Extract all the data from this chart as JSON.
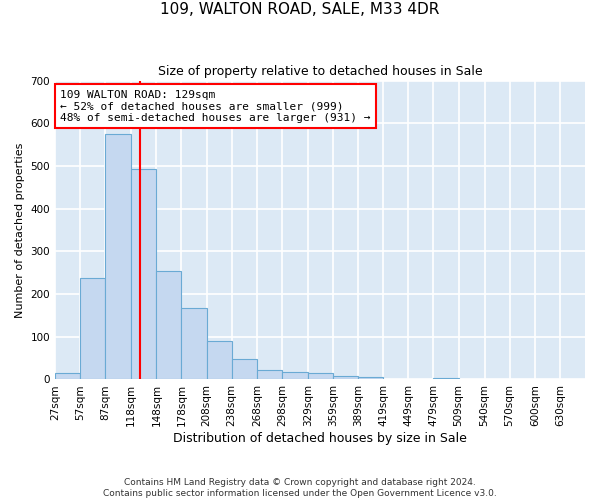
{
  "title1": "109, WALTON ROAD, SALE, M33 4DR",
  "title2": "Size of property relative to detached houses in Sale",
  "xlabel": "Distribution of detached houses by size in Sale",
  "ylabel": "Number of detached properties",
  "footnote": "Contains HM Land Registry data © Crown copyright and database right 2024.\nContains public sector information licensed under the Open Government Licence v3.0.",
  "annotation_text": "109 WALTON ROAD: 129sqm\n← 52% of detached houses are smaller (999)\n48% of semi-detached houses are larger (931) →",
  "property_size": 129,
  "bin_edges": [
    27,
    57,
    87,
    118,
    148,
    178,
    208,
    238,
    268,
    298,
    329,
    359,
    389,
    419,
    449,
    479,
    509,
    540,
    570,
    600,
    630,
    660
  ],
  "bar_heights": [
    14,
    237,
    576,
    493,
    253,
    168,
    90,
    47,
    22,
    18,
    15,
    9,
    5,
    0,
    0,
    3,
    0,
    0,
    0,
    0,
    0
  ],
  "bin_labels": [
    "27sqm",
    "57sqm",
    "87sqm",
    "118sqm",
    "148sqm",
    "178sqm",
    "208sqm",
    "238sqm",
    "268sqm",
    "298sqm",
    "329sqm",
    "359sqm",
    "389sqm",
    "419sqm",
    "449sqm",
    "479sqm",
    "509sqm",
    "540sqm",
    "570sqm",
    "600sqm",
    "630sqm"
  ],
  "bar_color": "#c5d8f0",
  "bar_edge_color": "#6aaad4",
  "vline_color": "red",
  "background_color": "#dce9f5",
  "grid_color": "white",
  "ylim": [
    0,
    700
  ],
  "yticks": [
    0,
    100,
    200,
    300,
    400,
    500,
    600,
    700
  ],
  "title1_fontsize": 11,
  "title2_fontsize": 9,
  "ylabel_fontsize": 8,
  "xlabel_fontsize": 9,
  "tick_fontsize": 7.5,
  "annotation_fontsize": 8,
  "footnote_fontsize": 6.5
}
